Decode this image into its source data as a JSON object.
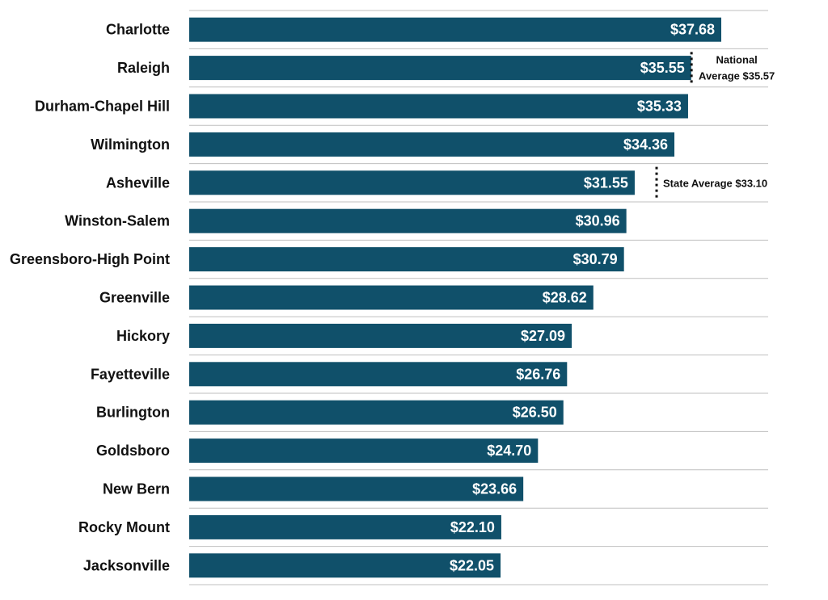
{
  "chart_data": {
    "type": "bar",
    "orientation": "horizontal",
    "categories": [
      "Charlotte",
      "Raleigh",
      "Durham-Chapel Hill",
      "Wilmington",
      "Asheville",
      "Winston-Salem",
      "Greensboro-High Point",
      "Greenville",
      "Hickory",
      "Fayetteville",
      "Burlington",
      "Goldsboro",
      "New Bern",
      "Rocky Mount",
      "Jacksonville"
    ],
    "values": [
      37.68,
      35.55,
      35.33,
      34.36,
      31.55,
      30.96,
      30.79,
      28.62,
      27.09,
      26.76,
      26.5,
      24.7,
      23.66,
      22.1,
      22.05
    ],
    "value_labels": [
      "$37.68",
      "$35.55",
      "$35.33",
      "$34.36",
      "$31.55",
      "$30.96",
      "$30.79",
      "$28.62",
      "$27.09",
      "$26.76",
      "$26.50",
      "$24.70",
      "$23.66",
      "$22.10",
      "$22.05"
    ],
    "title": "",
    "xlabel": "",
    "ylabel": "",
    "xlim": [
      0,
      41
    ],
    "grid": "horizontal separators between categories",
    "reference_lines": [
      {
        "value": 35.57,
        "label_lines": [
          "National",
          "Average $35.57"
        ],
        "position": "near Raleigh"
      },
      {
        "value": 33.1,
        "label_lines": [
          "State Average $33.10"
        ],
        "position": "near Asheville"
      }
    ],
    "colors": {
      "bar": "#10506a",
      "gridline": "#bfbfbf",
      "value_label": "#ffffff",
      "category_label": "#111111",
      "reference_line": "#111111"
    }
  }
}
